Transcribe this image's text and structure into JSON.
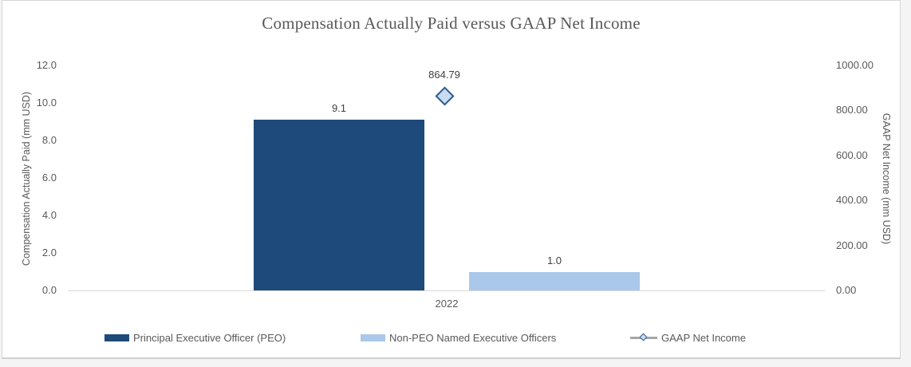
{
  "chart_data": {
    "type": "bar",
    "title": "Compensation Actually Paid versus GAAP Net Income",
    "categories": [
      "2022"
    ],
    "series": [
      {
        "name": "Principal Executive Officer (PEO)",
        "type": "bar",
        "axis": "left",
        "values": [
          9.1
        ],
        "data_labels": [
          "9.1"
        ],
        "color": "#1D4A7A"
      },
      {
        "name": "Non-PEO Named Executive Officers",
        "type": "bar",
        "axis": "left",
        "values": [
          1.0
        ],
        "data_labels": [
          "1.0"
        ],
        "color": "#AAC8E9"
      },
      {
        "name": "GAAP Net Income",
        "type": "scatter",
        "marker": "diamond",
        "axis": "right",
        "values": [
          864.79
        ],
        "data_labels": [
          "864.79"
        ],
        "color": "#2E5C8F",
        "marker_fill": "#C9DCF0"
      }
    ],
    "left_axis": {
      "label": "Compensation Actually Paid (mm USD)",
      "ticks": [
        "12.0",
        "10.0",
        "8.0",
        "6.0",
        "4.0",
        "2.0",
        "0.0"
      ]
    },
    "right_axis": {
      "label": "GAAP Net Income (mm USD)",
      "ticks": [
        "1000.00",
        "800.00",
        "600.00",
        "400.00",
        "200.00",
        "0.00"
      ]
    },
    "left_ylim": [
      0,
      12
    ],
    "right_ylim": [
      0,
      1000
    ],
    "grid": false,
    "legend_position": "bottom"
  },
  "legend": {
    "items": [
      {
        "label": "Principal Executive Officer (PEO)"
      },
      {
        "label": "Non-PEO Named Executive Officers"
      },
      {
        "label": "GAAP Net Income"
      }
    ]
  },
  "colors": {
    "peo_bar": "#1D4A7A",
    "non_peo_bar": "#AAC8E9",
    "marker_stroke": "#2E5C8F",
    "marker_fill": "#C9DCF0",
    "axis_line": "#D9D9D9",
    "text": "#595959",
    "panel_border": "#D6D6D6"
  }
}
